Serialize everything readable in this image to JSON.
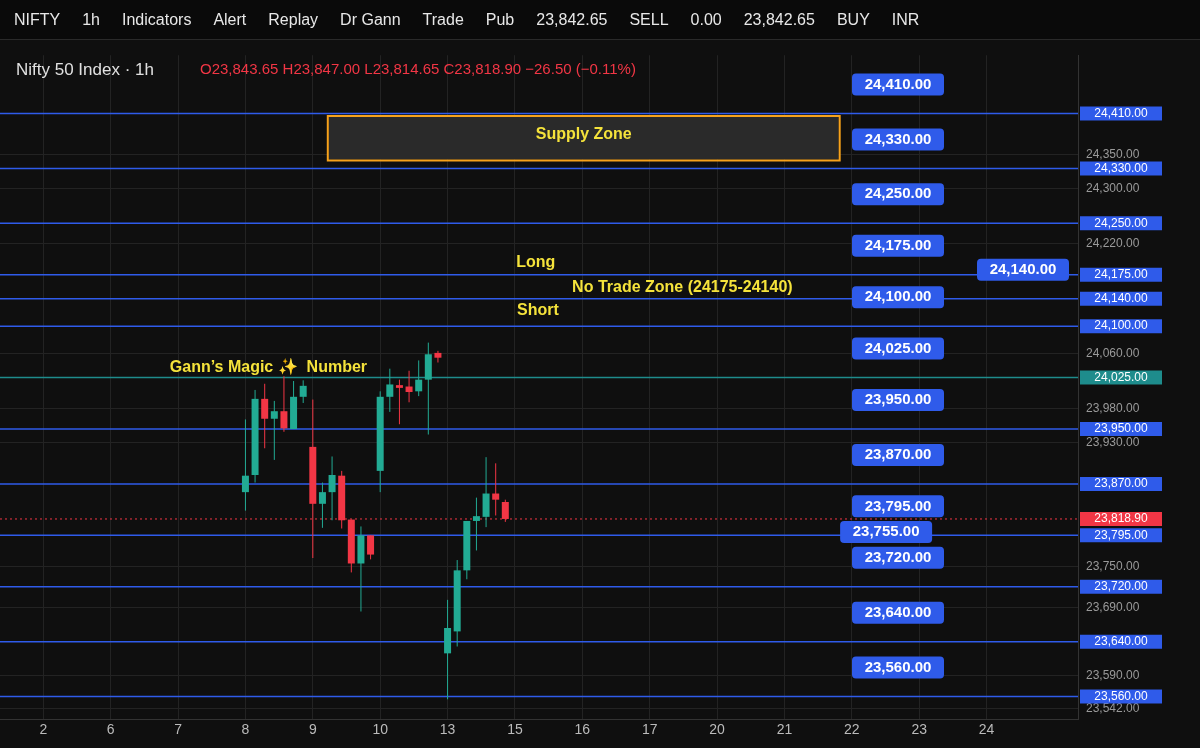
{
  "chart_data": {
    "type": "candlestick",
    "title": "Nifty 50 Index · 1h",
    "subtitle": "O23,843.65 H23,847.00 L23,814.65 C23,818.90 −26.50 (−0.11%)",
    "categories": [
      null,
      null,
      null,
      null,
      "2",
      null,
      null,
      null,
      null,
      null,
      null,
      "6",
      null,
      null,
      null,
      null,
      null,
      null,
      "7",
      null,
      null,
      null,
      null,
      null,
      null,
      "8",
      null,
      null,
      null,
      null,
      null,
      null,
      "9",
      null,
      null,
      null,
      null,
      null,
      null,
      "10",
      null,
      null,
      null,
      null,
      null,
      null,
      "13",
      null,
      null,
      null,
      null,
      null,
      null,
      "15",
      null,
      null,
      null,
      null,
      null,
      null,
      "16",
      null,
      null,
      null,
      null,
      null,
      null,
      "17",
      null,
      null,
      null,
      null,
      null,
      null,
      "20",
      null,
      null,
      null,
      null,
      null,
      null,
      "21",
      null,
      null,
      null,
      null,
      null,
      null,
      "22",
      null,
      null,
      null,
      null,
      null,
      null,
      "23",
      null,
      null,
      null,
      null,
      null,
      null,
      "24",
      null,
      null,
      null,
      null,
      null,
      null,
      null,
      null,
      null
    ],
    "ohlc": [
      null,
      null,
      null,
      null,
      null,
      null,
      null,
      null,
      null,
      null,
      null,
      null,
      null,
      null,
      null,
      null,
      null,
      null,
      null,
      null,
      null,
      null,
      null,
      null,
      null,
      [
        23858,
        23964,
        23831,
        23882
      ],
      [
        23883,
        24007,
        23872,
        23994
      ],
      [
        23994,
        24016,
        23922,
        23965
      ],
      [
        23965,
        23991,
        23905,
        23976
      ],
      [
        23976,
        24027,
        23946,
        23951
      ],
      [
        23950,
        24020,
        23950,
        23997
      ],
      [
        23997,
        24021,
        23988,
        24013
      ],
      [
        23924,
        23993,
        23762,
        23841
      ],
      [
        23841,
        23872,
        23806,
        23858
      ],
      [
        23858,
        23910,
        23817,
        23883
      ],
      [
        23882,
        23889,
        23805,
        23817
      ],
      [
        23818,
        23818,
        23741,
        23754
      ],
      [
        23754,
        23808,
        23684,
        23795
      ],
      [
        23795,
        23795,
        23760,
        23767
      ],
      [
        23889,
        24005,
        23858,
        23997
      ],
      [
        23997,
        24038,
        23975,
        24015
      ],
      [
        24014,
        24022,
        23957,
        24010
      ],
      [
        24012,
        24035,
        23989,
        24004
      ],
      [
        24005,
        24050,
        23998,
        24022
      ],
      [
        24022,
        24076,
        23942,
        24059
      ],
      [
        24061,
        24064,
        24047,
        24054
      ],
      [
        23623,
        23701,
        23556,
        23660
      ],
      [
        23655,
        23759,
        23633,
        23744
      ],
      [
        23744,
        23816,
        23731,
        23816
      ],
      [
        23816,
        23850,
        23773,
        23823
      ],
      [
        23822,
        23909,
        23807,
        23856
      ],
      [
        23856,
        23900,
        23824,
        23847
      ],
      [
        23843.65,
        23847,
        23814.65,
        23818.9
      ],
      null,
      null,
      null,
      null,
      null,
      null,
      null,
      null,
      null,
      null,
      null,
      null,
      null,
      null,
      null,
      null,
      null,
      null,
      null,
      null,
      null,
      null,
      null,
      null,
      null,
      null,
      null,
      null,
      null,
      null,
      null,
      null,
      null,
      null,
      null,
      null,
      null,
      null,
      null,
      null,
      null,
      null,
      null,
      null,
      null,
      null,
      null,
      null,
      null,
      null,
      null,
      null,
      null,
      null,
      null,
      null,
      null,
      null,
      null
    ],
    "colors": [
      null,
      null,
      null,
      null,
      null,
      null,
      null,
      null,
      null,
      null,
      null,
      null,
      null,
      null,
      null,
      null,
      null,
      null,
      null,
      null,
      null,
      null,
      null,
      null,
      null,
      "#22ab94",
      "#22ab94",
      "#f23645",
      "#22ab94",
      "#f23645",
      "#22ab94",
      "#22ab94",
      "#f23645",
      "#22ab94",
      "#22ab94",
      "#f23645",
      "#f23645",
      "#22ab94",
      "#f23645",
      "#22ab94",
      "#22ab94",
      "#f23645",
      "#f23645",
      "#22ab94",
      "#22ab94",
      "#f23645",
      "#22ab94",
      "#22ab94",
      "#22ab94",
      "#22ab94",
      "#22ab94",
      "#f23645",
      "#f23645",
      null,
      null,
      null,
      null,
      null,
      null,
      null,
      null,
      null,
      null,
      null,
      null,
      null,
      null,
      null,
      null,
      null,
      null,
      null,
      null,
      null,
      null,
      null,
      null,
      null,
      null,
      null,
      null,
      null,
      null,
      null,
      null,
      null,
      null,
      null,
      null,
      null,
      null,
      null,
      null,
      null,
      null,
      null,
      null,
      null,
      null,
      null,
      null,
      null,
      null,
      null,
      null,
      null,
      null,
      null,
      null,
      null,
      null,
      null
    ],
    "ylim": [
      23527,
      24495
    ],
    "yticks": [
      {
        "value": 24350,
        "label": "24,350.00"
      },
      {
        "value": 24300,
        "label": "24,300.00"
      },
      {
        "value": 24220,
        "label": "24,220.00"
      },
      {
        "value": 24060,
        "label": "24,060.00"
      },
      {
        "value": 23980,
        "label": "23,980.00"
      },
      {
        "value": 23930,
        "label": "23,930.00"
      },
      {
        "value": 23750,
        "label": "23,750.00"
      },
      {
        "value": 23690,
        "label": "23,690.00"
      },
      {
        "value": 23590,
        "label": "23,590.00"
      },
      {
        "value": 23542,
        "label": "23,542.00"
      }
    ],
    "grid": true,
    "bands": [
      {
        "axis": "y",
        "from": 24343,
        "to": 24405,
        "label": "Supply Zone",
        "color": "#2a2a2a"
      }
    ],
    "ref_lines": [
      {
        "axis": "y",
        "value": 24410,
        "label": "24,410.00",
        "color": "#2f5bea"
      },
      {
        "axis": "y",
        "value": 24330,
        "label": "24,330.00",
        "color": "#2f5bea"
      },
      {
        "axis": "y",
        "value": 24250,
        "label": "24,250.00",
        "color": "#2f5bea"
      },
      {
        "axis": "y",
        "value": 24175,
        "label": "24,175.00",
        "color": "#2f5bea"
      },
      {
        "axis": "y",
        "value": 24140,
        "label": "24,140.00",
        "color": "#2f5bea"
      },
      {
        "axis": "y",
        "value": 24100,
        "label": "24,100.00",
        "color": "#2f5bea"
      },
      {
        "axis": "y",
        "value": 24025,
        "label": "24,025.00",
        "color": "#1e8c8c"
      },
      {
        "axis": "y",
        "value": 23950,
        "label": "23,950.00",
        "color": "#2f5bea"
      },
      {
        "axis": "y",
        "value": 23870,
        "label": "23,870.00",
        "color": "#2f5bea"
      },
      {
        "axis": "y",
        "value": 23818.9,
        "label": "23,818.90",
        "color": "#f23645",
        "line_style": "dotted"
      },
      {
        "axis": "y",
        "value": 23795,
        "label": "23,795.00",
        "color": "#2f5bea"
      },
      {
        "axis": "y",
        "value": 23720,
        "label": "23,720.00",
        "color": "#2f5bea"
      },
      {
        "axis": "y",
        "value": 23640,
        "label": "23,640.00",
        "color": "#2f5bea"
      },
      {
        "axis": "y",
        "value": 23560,
        "label": "23,560.00",
        "color": "#2f5bea"
      }
    ],
    "annotations": [
      "NIFTY",
      "1h",
      "Indicators",
      "Alert",
      "Replay",
      "Dr Gann",
      "Trade",
      "Pub",
      "23,842.65",
      "SELL",
      "0.00",
      "23,842.65",
      "BUY",
      "INR",
      "Long",
      "No Trade Zone (24175-24140)",
      "Short",
      "Gann’s Magic ✨  Number",
      "23,755.00"
    ]
  }
}
